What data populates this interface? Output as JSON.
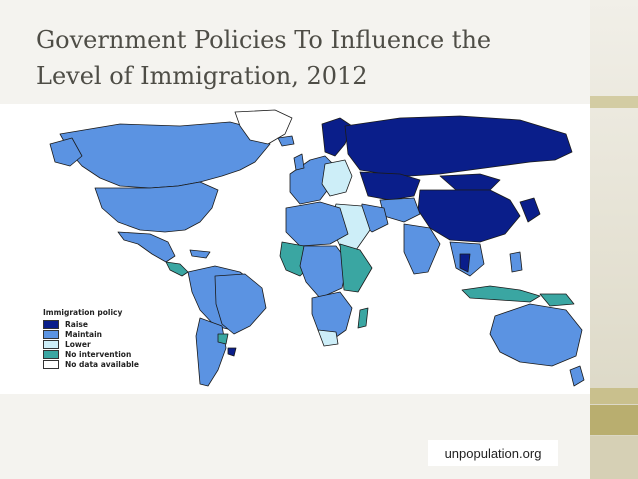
{
  "slide": {
    "title": "Government Policies To Influence the\nLevel of  Immigration, 2012",
    "source": "unpopulation.org"
  },
  "legend": {
    "title": "Immigration policy",
    "items": [
      {
        "label": "Raise",
        "color": "#0a1e8a"
      },
      {
        "label": "Maintain",
        "color": "#5b93e2"
      },
      {
        "label": "Lower",
        "color": "#cdeef8"
      },
      {
        "label": "No intervention",
        "color": "#3aa6a2"
      },
      {
        "label": "No data available",
        "color": "#ffffff"
      }
    ]
  },
  "colors": {
    "background": "#f4f3ef",
    "title_text": "#4e4d46",
    "ocean": "#ffffff",
    "raise": "#0a1e8a",
    "maintain": "#5b93e2",
    "lower": "#cdeef8",
    "no_intervention": "#3aa6a2"
  }
}
